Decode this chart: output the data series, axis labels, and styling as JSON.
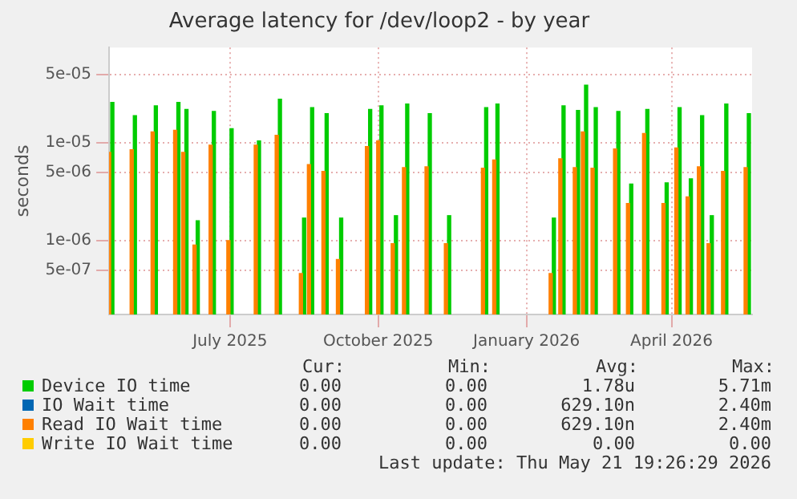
{
  "chart_data": {
    "type": "bar",
    "title": "Average latency for /dev/loop2 - by year",
    "ylabel": "seconds",
    "x": [
      "2025-04-18",
      "2025-05-02",
      "2025-05-15",
      "2025-05-29",
      "2025-06-03",
      "2025-06-10",
      "2025-06-20",
      "2025-07-01",
      "2025-07-18",
      "2025-07-31",
      "2025-08-15",
      "2025-08-20",
      "2025-08-29",
      "2025-09-07",
      "2025-09-25",
      "2025-10-02",
      "2025-10-11",
      "2025-10-18",
      "2025-11-01",
      "2025-11-13",
      "2025-12-06",
      "2025-12-13",
      "2026-01-17",
      "2026-01-23",
      "2026-02-01",
      "2026-02-06",
      "2026-02-12",
      "2026-02-26",
      "2026-03-06",
      "2026-03-16",
      "2026-03-28",
      "2026-04-05",
      "2026-04-12",
      "2026-04-19",
      "2026-04-25",
      "2026-05-04",
      "2026-05-18"
    ],
    "series": [
      {
        "name": "Device IO time",
        "color": "#00cc00",
        "values": [
          2.6e-05,
          1.9e-05,
          2.4e-05,
          2.6e-05,
          2.2e-05,
          1.6e-06,
          2.1e-05,
          1.4e-05,
          1.05e-05,
          2.8e-05,
          1.7e-06,
          2.3e-05,
          2e-05,
          1.7e-06,
          2.2e-05,
          2.4e-05,
          1.8e-06,
          2.5e-05,
          2e-05,
          1.8e-06,
          2.3e-05,
          2.5e-05,
          1.7e-06,
          2.4e-05,
          2.15e-05,
          3.9e-05,
          2.3e-05,
          2.1e-05,
          3.8e-06,
          2.2e-05,
          3.9e-06,
          2.3e-05,
          4.3e-06,
          1.9e-05,
          1.8e-06,
          2.5e-05,
          2e-05
        ]
      },
      {
        "name": "IO Wait time",
        "color": "#0066b3",
        "values": [
          null,
          null,
          null,
          null,
          null,
          null,
          null,
          null,
          null,
          null,
          null,
          null,
          null,
          null,
          null,
          null,
          null,
          null,
          null,
          null,
          null,
          null,
          null,
          null,
          null,
          null,
          null,
          null,
          null,
          null,
          null,
          null,
          null,
          null,
          null,
          null,
          null
        ]
      },
      {
        "name": "Read IO Wait time",
        "color": "#ff8000",
        "values": [
          8e-06,
          8.5e-06,
          1.3e-05,
          1.35e-05,
          8e-06,
          9e-07,
          9.5e-06,
          1e-06,
          9.5e-06,
          1.2e-05,
          4.6e-07,
          6e-06,
          5.1e-06,
          6.4e-07,
          9.2e-06,
          1.05e-05,
          9.3e-07,
          5.6e-06,
          5.7e-06,
          9.3e-07,
          5.5e-06,
          6.7e-06,
          4.6e-07,
          6.9e-06,
          5.6e-06,
          1.3e-05,
          5.5e-06,
          8.7e-06,
          2.4e-06,
          1.25e-05,
          2.4e-06,
          8.9e-06,
          2.8e-06,
          5.7e-06,
          9.3e-07,
          5.1e-06,
          5.6e-06
        ]
      },
      {
        "name": "Write IO Wait time",
        "color": "#ffcc00",
        "values": [
          null,
          null,
          null,
          null,
          null,
          null,
          null,
          null,
          null,
          null,
          null,
          null,
          null,
          null,
          null,
          null,
          null,
          null,
          null,
          null,
          null,
          null,
          null,
          null,
          null,
          null,
          null,
          null,
          null,
          null,
          null,
          null,
          null,
          null,
          null,
          null,
          null
        ]
      }
    ],
    "log": "y",
    "xlim": [
      "2025-04-17",
      "2026-05-21"
    ],
    "xticks": [
      {
        "value": "2025-07-01",
        "label": "July 2025"
      },
      {
        "value": "2025-10-01",
        "label": "October 2025"
      },
      {
        "value": "2026-01-01",
        "label": "January 2026"
      },
      {
        "value": "2026-04-01",
        "label": "April 2026"
      }
    ],
    "ylim": [
      1.75e-07,
      9.5e-05
    ],
    "yticks": [
      {
        "value": 5e-07,
        "label": "5e-07"
      },
      {
        "value": 1e-06,
        "label": "1e-06"
      },
      {
        "value": 5e-06,
        "label": "5e-06"
      },
      {
        "value": 1e-05,
        "label": "1e-05"
      },
      {
        "value": 5e-05,
        "label": "5e-05"
      }
    ],
    "grid": true,
    "legend": "bottom",
    "annotations": [
      "Cur:",
      "Min:",
      "Avg:",
      "Max:",
      "0.00",
      "0.00",
      "1.78u",
      "5.71m",
      "0.00",
      "0.00",
      "629.10n",
      "2.40m",
      "0.00",
      "0.00",
      "629.10n",
      "2.40m",
      "0.00",
      "0.00",
      "0.00",
      "0.00",
      "Last update: Thu May 21 19:26:29 2026"
    ]
  }
}
